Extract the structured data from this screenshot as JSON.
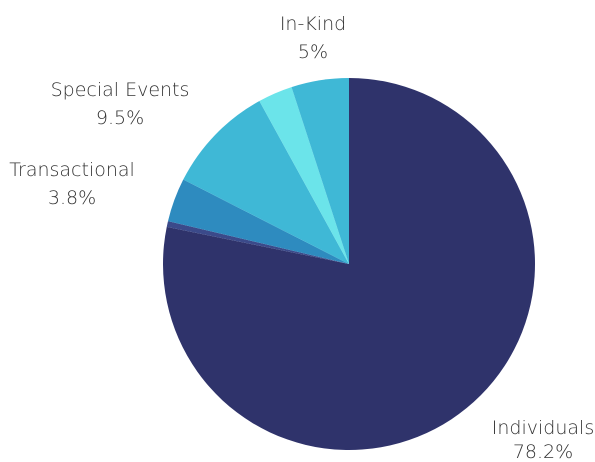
{
  "chart_data": {
    "type": "pie",
    "start_angle_deg": 0,
    "direction": "clockwise",
    "slices": [
      {
        "label": "Individuals",
        "value": 78.2,
        "display": "78.2%",
        "color": "#2f336b",
        "show_label": true
      },
      {
        "label": "",
        "value": 0.5,
        "display": "",
        "color": "#3b4a8a",
        "show_label": false
      },
      {
        "label": "Transactional",
        "value": 3.8,
        "display": "3.8%",
        "color": "#2e8bbf",
        "show_label": true
      },
      {
        "label": "Special Events",
        "value": 9.5,
        "display": "9.5%",
        "color": "#3fb8d6",
        "show_label": true
      },
      {
        "label": "",
        "value": 3.0,
        "display": "",
        "color": "#6be4ea",
        "show_label": false
      },
      {
        "label": "In-Kind",
        "value": 5.0,
        "display": "5%",
        "color": "#3fb8d6",
        "show_label": true
      }
    ]
  }
}
